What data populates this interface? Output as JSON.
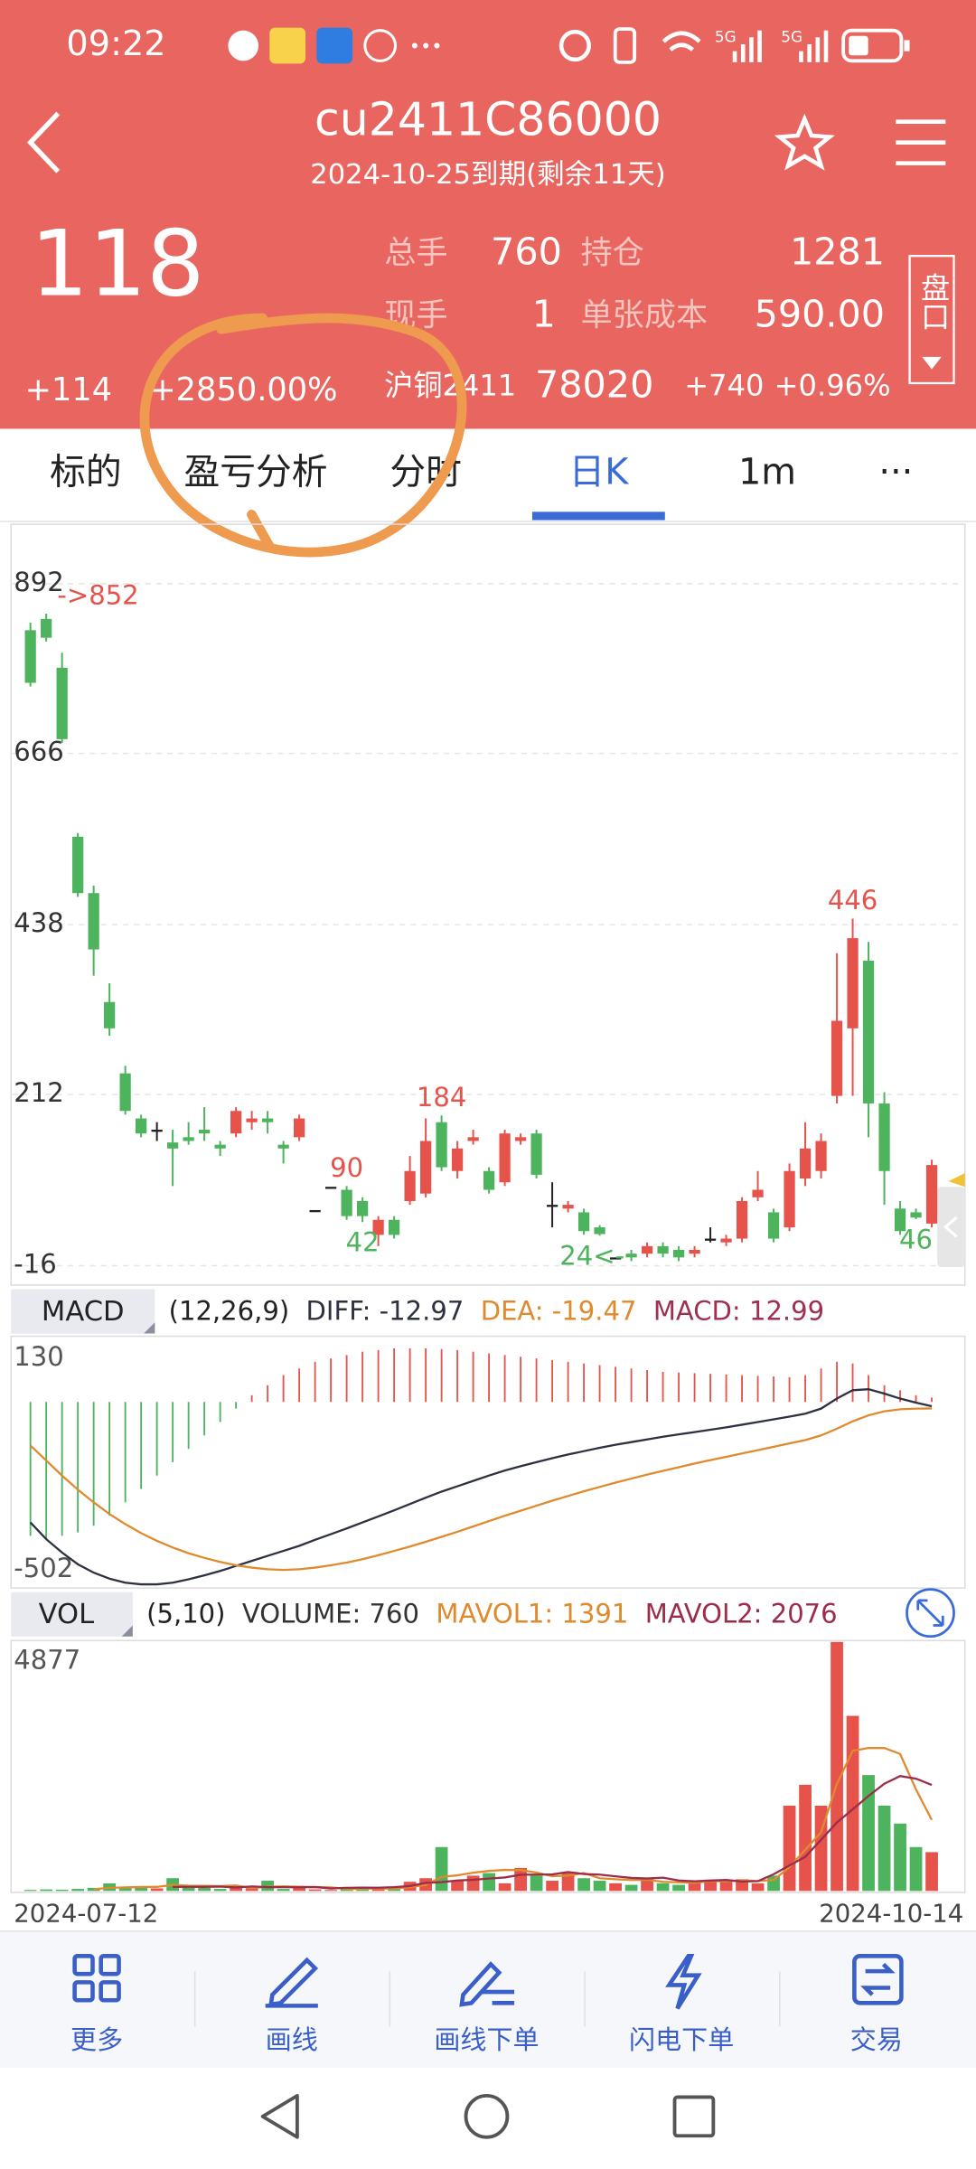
{
  "status_bar": {
    "time": "09:22",
    "signal1": "5G",
    "signal2": "5G"
  },
  "header": {
    "title": "cu2411C86000",
    "subtitle": "2024-10-25到期(剩余11天)"
  },
  "quote": {
    "price": "118",
    "change": "+114",
    "change_pct": "+2850.00%",
    "fields": [
      {
        "label": "总手",
        "value": "760"
      },
      {
        "label": "持仓",
        "value": "1281"
      },
      {
        "label": "现手",
        "value": "1"
      },
      {
        "label": "单张成本",
        "value": "590.00"
      }
    ],
    "underlying": {
      "name": "沪铜2411",
      "price": "78020",
      "change": "+740",
      "change_pct": "+0.96%"
    },
    "side_button": "盘口"
  },
  "tabs": [
    "标的",
    "盈亏分析",
    "分时",
    "日K",
    "1m",
    "···"
  ],
  "active_tab": 3,
  "chart_data": [
    {
      "type": "candlestick",
      "up_color": "#e5534b",
      "down_color": "#4db35d",
      "flat_color": "#222222",
      "open": [
        830,
        845,
        780,
        555,
        480,
        335,
        240,
        180,
        165,
        148,
        155,
        165,
        145,
        160,
        175,
        180,
        145,
        155,
        58,
        89,
        85,
        70,
        25,
        45,
        70,
        80,
        175,
        110,
        150,
        110,
        95,
        150,
        160,
        65,
        60,
        55,
        35,
        -5,
        0,
        0,
        10,
        5,
        0,
        20,
        15,
        20,
        75,
        55,
        35,
        100,
        110,
        210,
        300,
        390,
        200,
        60,
        55,
        40
      ],
      "high": [
        840,
        852,
        800,
        560,
        490,
        360,
        250,
        185,
        175,
        165,
        175,
        195,
        150,
        195,
        190,
        190,
        150,
        185,
        58,
        89,
        90,
        75,
        50,
        50,
        130,
        180,
        184,
        150,
        165,
        115,
        165,
        160,
        165,
        95,
        70,
        60,
        38,
        -5,
        5,
        15,
        15,
        10,
        10,
        35,
        25,
        75,
        110,
        60,
        120,
        175,
        160,
        400,
        446,
        415,
        215,
        70,
        60,
        125
      ],
      "low": [
        755,
        815,
        680,
        475,
        370,
        290,
        185,
        155,
        150,
        90,
        145,
        150,
        130,
        155,
        165,
        160,
        120,
        150,
        58,
        89,
        45,
        42,
        10,
        20,
        65,
        75,
        110,
        100,
        145,
        80,
        90,
        145,
        100,
        35,
        55,
        25,
        24,
        -5,
        -10,
        -5,
        -5,
        -10,
        -5,
        15,
        10,
        15,
        70,
        15,
        30,
        90,
        100,
        200,
        210,
        155,
        65,
        25,
        46,
        35
      ],
      "close": [
        760,
        820,
        685,
        480,
        405,
        300,
        190,
        160,
        165,
        140,
        150,
        160,
        140,
        190,
        180,
        175,
        140,
        180,
        58,
        89,
        50,
        50,
        45,
        25,
        110,
        150,
        115,
        140,
        155,
        85,
        160,
        155,
        105,
        65,
        65,
        30,
        26,
        -5,
        -5,
        10,
        0,
        -5,
        5,
        20,
        20,
        70,
        85,
        20,
        110,
        140,
        150,
        310,
        420,
        200,
        110,
        30,
        48,
        118
      ],
      "ylim": [
        -40,
        960
      ],
      "yticks": [
        -16,
        212,
        438,
        666,
        892
      ],
      "grid": true,
      "annotations": [
        {
          "text": "->852",
          "value": 852
        },
        {
          "text": "446",
          "value": 446
        },
        {
          "text": "184",
          "value": 184
        },
        {
          "text": "90",
          "value": 90
        },
        {
          "text": "42",
          "value": 42
        },
        {
          "text": "24<-",
          "value": 24
        },
        {
          "text": "46",
          "value": 46
        }
      ]
    },
    {
      "type": "macd",
      "title": "MACD",
      "params": "(12,26,9)",
      "ylim": [
        -556,
        188
      ],
      "yticks": [
        -502,
        130
      ],
      "histogram": {
        "label": "MACD: 12.99",
        "color": "#a0304f",
        "up_color": "#e5534b",
        "down_color": "#4db35d",
        "values": [
          -400,
          -410,
          -400,
          -390,
          -370,
          -340,
          -300,
          -260,
          -220,
          -180,
          -140,
          -100,
          -60,
          -20,
          20,
          50,
          80,
          100,
          120,
          130,
          140,
          150,
          155,
          160,
          160,
          160,
          158,
          155,
          150,
          145,
          140,
          135,
          130,
          125,
          120,
          115,
          110,
          105,
          100,
          95,
          90,
          88,
          86,
          84,
          82,
          80,
          78,
          76,
          74,
          80,
          100,
          120,
          115,
          80,
          50,
          35,
          20,
          12.99
        ]
      },
      "series": [
        {
          "label": "DIFF: -12.97",
          "color": "#2d3142",
          "values": [
            -360,
            -410,
            -450,
            -485,
            -510,
            -528,
            -540,
            -545,
            -545,
            -540,
            -530,
            -518,
            -505,
            -490,
            -475,
            -460,
            -445,
            -430,
            -412,
            -395,
            -378,
            -360,
            -342,
            -324,
            -305,
            -286,
            -268,
            -252,
            -236,
            -220,
            -205,
            -192,
            -180,
            -168,
            -157,
            -147,
            -137,
            -128,
            -120,
            -112,
            -104,
            -97,
            -90,
            -83,
            -76,
            -68,
            -60,
            -52,
            -44,
            -35,
            -20,
            10,
            35,
            38,
            25,
            10,
            -2,
            -12.97
          ]
        },
        {
          "label": "DEA: -19.47",
          "color": "#e08a2e",
          "values": [
            -130,
            -175,
            -220,
            -262,
            -300,
            -335,
            -365,
            -392,
            -415,
            -435,
            -452,
            -466,
            -478,
            -488,
            -495,
            -500,
            -502,
            -500,
            -495,
            -488,
            -480,
            -470,
            -458,
            -445,
            -432,
            -418,
            -403,
            -388,
            -372,
            -356,
            -340,
            -325,
            -310,
            -295,
            -281,
            -267,
            -254,
            -241,
            -229,
            -217,
            -206,
            -195,
            -184,
            -174,
            -164,
            -154,
            -144,
            -134,
            -124,
            -114,
            -100,
            -80,
            -58,
            -40,
            -28,
            -22,
            -20,
            -19.47
          ]
        }
      ]
    },
    {
      "type": "volume",
      "title": "VOL",
      "params": "(5,10)",
      "ylim": [
        0,
        4877
      ],
      "yticks": [
        4877
      ],
      "up_color": "#e5534b",
      "down_color": "#4db35d",
      "categories": [
        "2024-07-12",
        null,
        null,
        null,
        null,
        null,
        null,
        null,
        null,
        null,
        null,
        null,
        null,
        null,
        null,
        null,
        null,
        null,
        null,
        null,
        null,
        null,
        null,
        null,
        null,
        null,
        null,
        null,
        null,
        null,
        null,
        null,
        null,
        null,
        null,
        null,
        null,
        null,
        null,
        null,
        null,
        null,
        null,
        null,
        null,
        null,
        null,
        null,
        null,
        null,
        null,
        null,
        null,
        null,
        null,
        null,
        null,
        "2024-10-14"
      ],
      "bars": {
        "label": "VOLUME: 760",
        "color": "#333333",
        "values": [
          20,
          30,
          25,
          40,
          60,
          150,
          80,
          60,
          50,
          250,
          80,
          60,
          40,
          60,
          50,
          200,
          40,
          60,
          30,
          20,
          40,
          60,
          50,
          40,
          180,
          250,
          860,
          200,
          300,
          350,
          150,
          450,
          300,
          200,
          350,
          250,
          200,
          150,
          120,
          250,
          150,
          120,
          200,
          220,
          180,
          230,
          150,
          300,
          1670,
          2080,
          1670,
          4877,
          3430,
          2270,
          1670,
          1320,
          860,
          760
        ]
      },
      "series": [
        {
          "label": "MAVOL1: 1391",
          "color": "#e08a2e",
          "values": [
            null,
            null,
            null,
            null,
            35,
            61,
            71,
            78,
            80,
            118,
            104,
            100,
            96,
            108,
            58,
            82,
            90,
            82,
            76,
            70,
            40,
            42,
            52,
            44,
            74,
            116,
            276,
            306,
            358,
            392,
            412,
            410,
            360,
            290,
            300,
            350,
            250,
            230,
            214,
            220,
            178,
            170,
            160,
            194,
            188,
            210,
            194,
            214,
            466,
            806,
            1150,
            2096,
            2745,
            2800,
            2800,
            2684,
            1991,
            1391
          ]
        },
        {
          "label": "MAVOL2: 2076",
          "color": "#9b2d4a",
          "values": [
            null,
            null,
            null,
            null,
            null,
            null,
            null,
            null,
            null,
            79,
            81,
            80,
            86,
            69,
            88,
            76,
            75,
            72,
            77,
            49,
            62,
            66,
            63,
            75,
            96,
            158,
            173,
            205,
            218,
            243,
            264,
            318,
            320,
            324,
            371,
            331,
            320,
            287,
            255,
            244,
            260,
            205,
            190,
            204,
            215,
            186,
            192,
            327,
            500,
            669,
            1003,
            1340,
            1600,
            1860,
            2100,
            2250,
            2200,
            2076
          ]
        }
      ]
    }
  ],
  "toolbar": [
    "更多",
    "画线",
    "画线下单",
    "闪电下单",
    "交易"
  ]
}
